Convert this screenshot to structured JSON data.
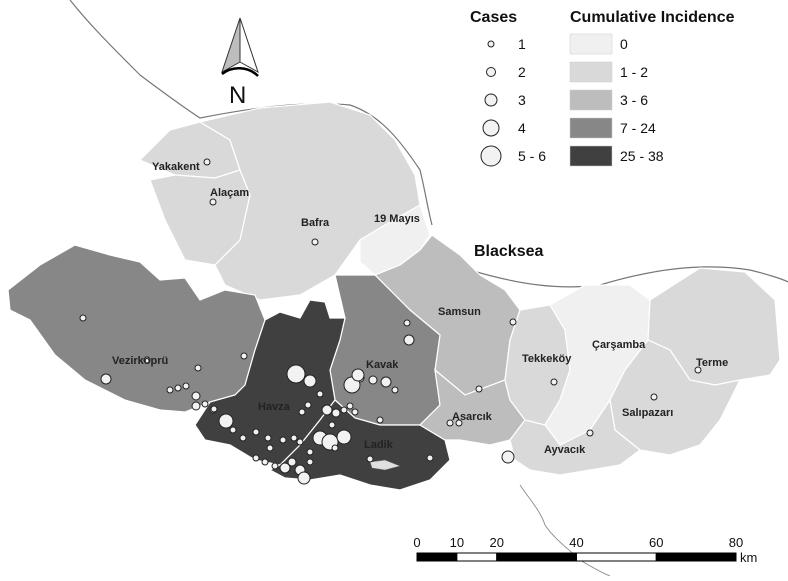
{
  "colors": {
    "c0": "#f0f0f0",
    "c1": "#d9d9d9",
    "c3": "#bdbdbd",
    "c7": "#878787",
    "c25": "#404040"
  },
  "north_arrow": {
    "label": "N",
    "icon": "north-arrow-icon"
  },
  "sea_label": "Blacksea",
  "legend": {
    "cases": {
      "title": "Cases",
      "items": [
        {
          "label": "1",
          "r": 3
        },
        {
          "label": "2",
          "r": 4.5
        },
        {
          "label": "3",
          "r": 6
        },
        {
          "label": "4",
          "r": 8
        },
        {
          "label": "5 - 6",
          "r": 10
        }
      ]
    },
    "incidence": {
      "title": "Cumulative Incidence",
      "items": [
        {
          "label": "0",
          "color": "#f0f0f0"
        },
        {
          "label": "1 - 2",
          "color": "#d9d9d9"
        },
        {
          "label": "3 - 6",
          "color": "#bdbdbd"
        },
        {
          "label": "7 - 24",
          "color": "#878787"
        },
        {
          "label": "25 - 38",
          "color": "#404040"
        }
      ]
    }
  },
  "districts": [
    {
      "name": "Yakakent",
      "color": "#d9d9d9"
    },
    {
      "name": "Alaçam",
      "color": "#d9d9d9"
    },
    {
      "name": "Bafra",
      "color": "#d9d9d9"
    },
    {
      "name": "19 Mayıs",
      "color": "#f0f0f0"
    },
    {
      "name": "Samsun",
      "color": "#bdbdbd"
    },
    {
      "name": "Vezirköprü",
      "color": "#878787"
    },
    {
      "name": "Kavak",
      "color": "#878787"
    },
    {
      "name": "Havza",
      "color": "#404040"
    },
    {
      "name": "Ladik",
      "color": "#404040"
    },
    {
      "name": "Asarcık",
      "color": "#bdbdbd"
    },
    {
      "name": "Tekkeköy",
      "color": "#d9d9d9"
    },
    {
      "name": "Çarşamba",
      "color": "#f0f0f0"
    },
    {
      "name": "Terme",
      "color": "#d9d9d9"
    },
    {
      "name": "Salıpazarı",
      "color": "#d9d9d9"
    },
    {
      "name": "Ayvacık",
      "color": "#d9d9d9"
    }
  ],
  "scale_bar": {
    "ticks": [
      "0",
      "10",
      "20",
      "40",
      "60",
      "80"
    ],
    "unit": "km"
  }
}
